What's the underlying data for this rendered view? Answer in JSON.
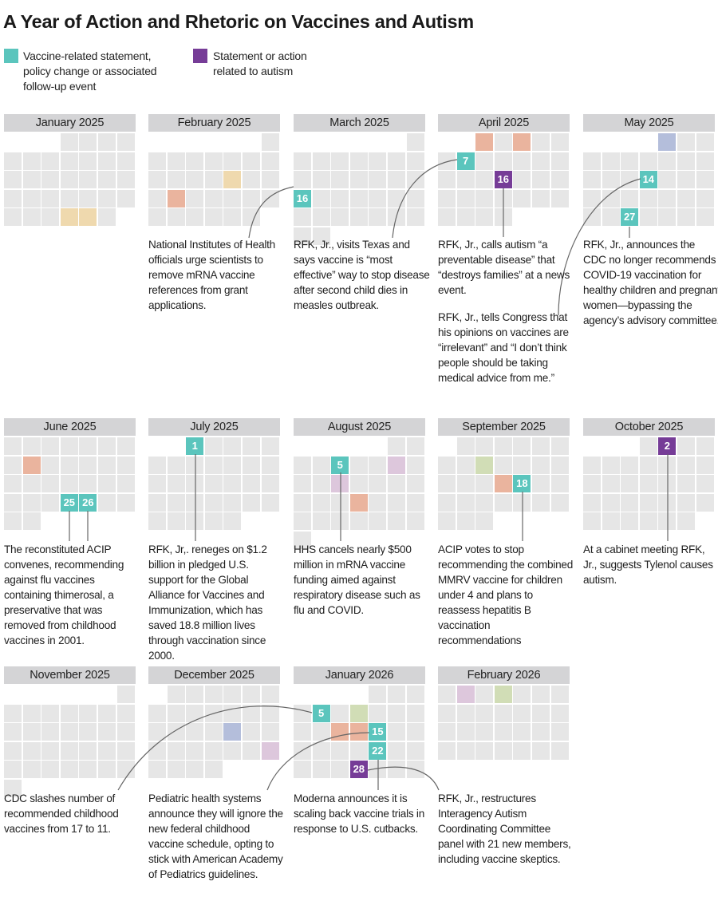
{
  "title": "A Year of Action and Rhetoric on Vaccines and Autism",
  "legend": [
    {
      "label": "Vaccine-related statement, policy change or associated follow-up event",
      "color": "#5bc5bd"
    },
    {
      "label": "Statement or action related to autism",
      "color": "#763c97"
    }
  ],
  "colors": {
    "vaccine": "#5bc5bd",
    "autism": "#763c97",
    "salmon": "#eab49e",
    "yellow": "#efd9ae",
    "green": "#d1ddb6",
    "blue": "#b4bedb",
    "lilac": "#ddc7dc",
    "empty": "#e6e6e6"
  },
  "months": [
    {
      "name": "January 2025",
      "start": 3,
      "days": 31,
      "marks": [
        {
          "day": 29,
          "type": "yellow"
        },
        {
          "day": 30,
          "type": "yellow"
        }
      ]
    },
    {
      "name": "February 2025",
      "start": 6,
      "days": 28,
      "marks": [
        {
          "day": 13,
          "type": "yellow"
        },
        {
          "day": 17,
          "type": "salmon"
        }
      ]
    },
    {
      "name": "March 2025",
      "start": 6,
      "days": 31,
      "marks": [
        {
          "day": 16,
          "type": "vaccine"
        }
      ]
    },
    {
      "name": "April 2025",
      "start": 2,
      "days": 30,
      "marks": [
        {
          "day": 1,
          "type": "salmon"
        },
        {
          "day": 3,
          "type": "salmon"
        },
        {
          "day": 7,
          "type": "vaccine"
        },
        {
          "day": 16,
          "type": "autism"
        }
      ]
    },
    {
      "name": "May 2025",
      "start": 4,
      "days": 31,
      "marks": [
        {
          "day": 1,
          "type": "blue"
        },
        {
          "day": 14,
          "type": "vaccine"
        },
        {
          "day": 27,
          "type": "vaccine"
        }
      ]
    },
    {
      "name": "June 2025",
      "start": 0,
      "days": 30,
      "marks": [
        {
          "day": 9,
          "type": "salmon"
        },
        {
          "day": 25,
          "type": "vaccine"
        },
        {
          "day": 26,
          "type": "vaccine"
        }
      ]
    },
    {
      "name": "July 2025",
      "start": 2,
      "days": 31,
      "marks": [
        {
          "day": 1,
          "type": "vaccine"
        }
      ]
    },
    {
      "name": "August 2025",
      "start": 5,
      "days": 31,
      "marks": [
        {
          "day": 5,
          "type": "vaccine"
        },
        {
          "day": 8,
          "type": "lilac"
        },
        {
          "day": 12,
          "type": "lilac"
        },
        {
          "day": 20,
          "type": "salmon"
        }
      ]
    },
    {
      "name": "September 2025",
      "start": 1,
      "days": 30,
      "marks": [
        {
          "day": 9,
          "type": "green"
        },
        {
          "day": 17,
          "type": "salmon"
        },
        {
          "day": 18,
          "type": "vaccine"
        }
      ]
    },
    {
      "name": "October 2025",
      "start": 3,
      "days": 31,
      "marks": [
        {
          "day": 2,
          "type": "autism"
        }
      ]
    },
    {
      "name": "November 2025",
      "start": 6,
      "days": 30,
      "marks": []
    },
    {
      "name": "December 2025",
      "start": 1,
      "days": 31,
      "marks": [
        {
          "day": 18,
          "type": "blue"
        },
        {
          "day": 27,
          "type": "lilac"
        }
      ]
    },
    {
      "name": "January 2026",
      "start": 4,
      "days": 31,
      "marks": [
        {
          "day": 5,
          "type": "vaccine"
        },
        {
          "day": 7,
          "type": "green"
        },
        {
          "day": 13,
          "type": "salmon"
        },
        {
          "day": 14,
          "type": "salmon"
        },
        {
          "day": 15,
          "type": "vaccine"
        },
        {
          "day": 22,
          "type": "vaccine"
        },
        {
          "day": 28,
          "type": "autism"
        }
      ]
    },
    {
      "name": "February 2026",
      "start": 0,
      "days": 28,
      "marks": [
        {
          "day": 2,
          "type": "lilac"
        },
        {
          "day": 4,
          "type": "green"
        }
      ]
    }
  ],
  "notes": [
    "National Institutes of Health officials urge scientists to remove mRNA vaccine references from grant applications.",
    "RFK, Jr., visits Texas and says vaccine is “most effective” way to stop disease after second child dies in measles outbreak.",
    "RFK, Jr., calls autism “a preventable disease” that “destroys families” at a news event.",
    "RFK, Jr., tells Congress that his opinions on vaccines are “irrelevant” and “I don’t think people should be taking medical advice from me.”",
    "RFK, Jr., announces the CDC no longer recommends COVID-19 vaccination for healthy children and pregnant women—bypassing the agency’s advisory committee.",
    "The reconstituted ACIP convenes, recommending against flu vaccines containing thimerosal, a preservative that was removed from childhood vaccines in 2001.",
    "RFK, Jr,. reneges on $1.2 billion in pledged U.S. support for the Global Alliance for Vaccines and Immunization, which has saved 18.8 million lives through vaccination since 2000.",
    "HHS cancels nearly $500 million in mRNA vaccine funding aimed against respiratory disease such as flu and COVID.",
    "ACIP votes to stop recommending the combined MMRV vaccine for children under 4 and plans to reassess hepatitis B vaccination recommendations",
    "At a cabinet meeting RFK, Jr., suggests Tylenol causes autism.",
    "CDC slashes number of recommended childhood vaccines from 17 to 11.",
    "Pediatric health systems announce they will ignore the new federal childhood vaccine schedule, opting to stick with American Academy of Pediatrics guidelines.",
    "Moderna announces it is scaling back vaccine trials in response to U.S. cutbacks.",
    "RFK, Jr., restructures Interagency Autism Coordinating Committee panel with 21 new members, including vaccine skeptics."
  ]
}
